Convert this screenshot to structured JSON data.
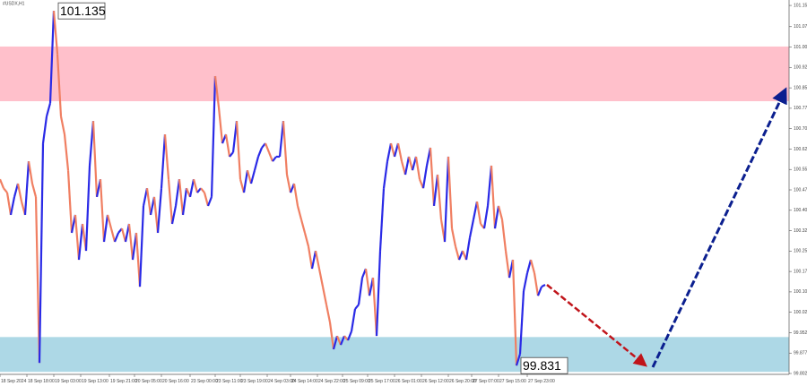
{
  "chart_data": {
    "type": "line",
    "title": "#USDX,H1",
    "up_color": "#2a2ae6",
    "down_color": "#f07f62",
    "values": [
      100.516,
      100.483,
      100.467,
      100.385,
      100.451,
      100.5,
      100.434,
      100.385,
      100.582,
      100.5,
      100.451,
      99.841,
      100.648,
      100.747,
      100.796,
      101.135,
      100.977,
      100.747,
      100.681,
      100.549,
      100.319,
      100.385,
      100.22,
      100.352,
      100.253,
      100.566,
      100.73,
      100.451,
      100.516,
      100.286,
      100.385,
      100.335,
      100.286,
      100.319,
      100.335,
      100.286,
      100.352,
      100.22,
      100.319,
      100.121,
      100.418,
      100.483,
      100.385,
      100.451,
      100.319,
      100.483,
      100.681,
      100.516,
      100.352,
      100.418,
      100.516,
      100.385,
      100.483,
      100.451,
      100.516,
      100.467,
      100.483,
      100.467,
      100.418,
      100.451,
      100.895,
      100.78,
      100.648,
      100.681,
      100.599,
      100.615,
      100.73,
      100.516,
      100.467,
      100.549,
      100.5,
      100.549,
      100.599,
      100.632,
      100.648,
      100.615,
      100.582,
      100.599,
      100.599,
      100.73,
      100.533,
      100.467,
      100.5,
      100.418,
      100.368,
      100.319,
      100.269,
      100.187,
      100.253,
      100.187,
      100.121,
      100.055,
      99.99,
      99.891,
      99.94,
      99.907,
      99.94,
      99.924,
      99.957,
      100.039,
      100.055,
      100.154,
      100.187,
      100.088,
      100.154,
      99.94,
      100.253,
      100.483,
      100.582,
      100.648,
      100.599,
      100.648,
      100.582,
      100.533,
      100.599,
      100.549,
      100.599,
      100.516,
      100.483,
      100.566,
      100.632,
      100.418,
      100.533,
      100.368,
      100.286,
      100.599,
      100.335,
      100.269,
      100.22,
      100.253,
      100.22,
      100.302,
      100.368,
      100.434,
      100.352,
      100.335,
      100.418,
      100.566,
      100.335,
      100.418,
      100.368,
      100.253,
      100.154,
      100.22,
      99.831,
      99.874,
      100.105,
      100.171,
      100.22,
      100.171,
      100.088,
      100.121,
      100.128
    ],
    "xlim": [
      0,
      220
    ],
    "xticks": [
      {
        "value": 0,
        "label": "18 Sep 2024"
      },
      {
        "value": 7.5,
        "label": "18 Sep 18:00"
      },
      {
        "value": 15,
        "label": "19 Sep 03:00"
      },
      {
        "value": 22.5,
        "label": "19 Sep 13:00"
      },
      {
        "value": 30.5,
        "label": "19 Sep 21:00"
      },
      {
        "value": 37.5,
        "label": "20 Sep 05:00"
      },
      {
        "value": 45,
        "label": "20 Sep 16:00"
      },
      {
        "value": 53,
        "label": "23 Sep 00:00"
      },
      {
        "value": 60,
        "label": "23 Sep 11:00"
      },
      {
        "value": 67,
        "label": "23 Sep 19:00"
      },
      {
        "value": 74.5,
        "label": "24 Sep 03:00"
      },
      {
        "value": 81,
        "label": "24 Sep 14:00"
      },
      {
        "value": 88.5,
        "label": "24 Sep 22:00"
      },
      {
        "value": 95.5,
        "label": "25 Sep 09:00"
      },
      {
        "value": 102.5,
        "label": "25 Sep 17:00"
      },
      {
        "value": 110,
        "label": "26 Sep 01:00"
      },
      {
        "value": 117.5,
        "label": "26 Sep 12:00"
      },
      {
        "value": 125,
        "label": "26 Sep 20:00"
      },
      {
        "value": 131.5,
        "label": "27 Sep 07:00"
      },
      {
        "value": 139,
        "label": "27 Sep 15:00"
      },
      {
        "value": 147,
        "label": "27 Sep 23:00"
      }
    ],
    "ylim": [
      99.756,
      101.175
    ],
    "yticks": [
      101.155,
      101.077,
      101.002,
      100.927,
      100.852,
      100.777,
      100.702,
      100.627,
      100.552,
      100.477,
      100.402,
      100.327,
      100.252,
      100.177,
      100.102,
      100.027,
      99.952,
      99.877,
      99.802
    ],
    "zones": [
      {
        "color": "#ffc0cb",
        "from": 101.004,
        "to": 100.803
      },
      {
        "color": "#add8e6",
        "from": 99.936,
        "to": 99.808
      }
    ],
    "annotations": [
      {
        "value": 101.135,
        "x": 15
      },
      {
        "value": 99.831,
        "x": 144
      }
    ]
  }
}
